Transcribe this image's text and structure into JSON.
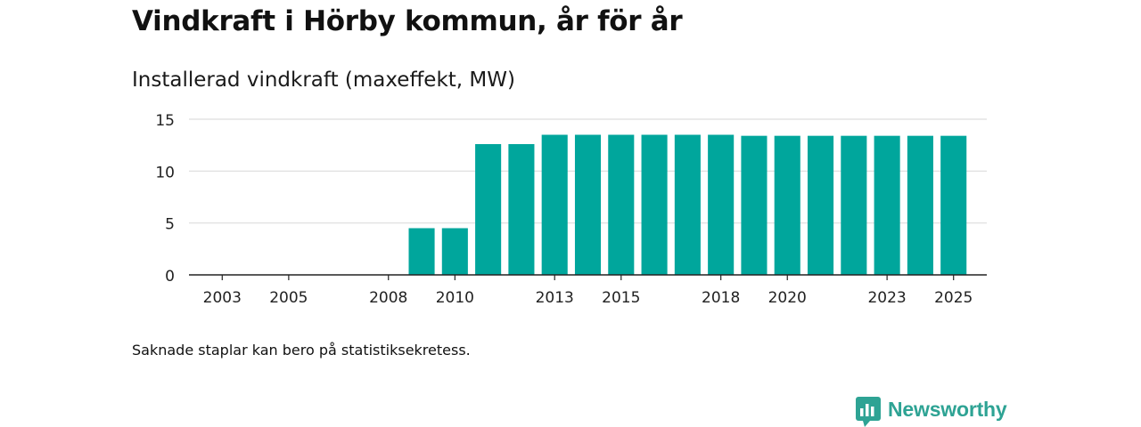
{
  "page": {
    "title": "Vindkraft i Hörby kommun, år för år",
    "note": "Saknade staplar kan bero på statistiksekretess.",
    "brand": "Newsworthy"
  },
  "colors": {
    "bar": "#00a69c",
    "grid": "#dddddd",
    "axis": "#222222",
    "brand": "#2ea394"
  },
  "chart_data": {
    "type": "bar",
    "title": "Installerad vindkraft (maxeffekt, MW)",
    "xlabel": "",
    "ylabel": "",
    "ylim": [
      0,
      15
    ],
    "yticks": [
      0,
      5,
      10,
      15
    ],
    "grid": true,
    "xrange": [
      2002,
      2026
    ],
    "xticks": [
      2003,
      2005,
      2008,
      2010,
      2013,
      2015,
      2018,
      2020,
      2023,
      2025
    ],
    "categories": [
      2009,
      2010,
      2011,
      2012,
      2013,
      2014,
      2015,
      2016,
      2017,
      2018,
      2019,
      2020,
      2021,
      2022,
      2023,
      2024,
      2025
    ],
    "values": [
      4.5,
      4.5,
      12.6,
      12.6,
      13.5,
      13.5,
      13.5,
      13.5,
      13.5,
      13.5,
      13.4,
      13.4,
      13.4,
      13.4,
      13.4,
      13.4,
      13.4
    ]
  }
}
